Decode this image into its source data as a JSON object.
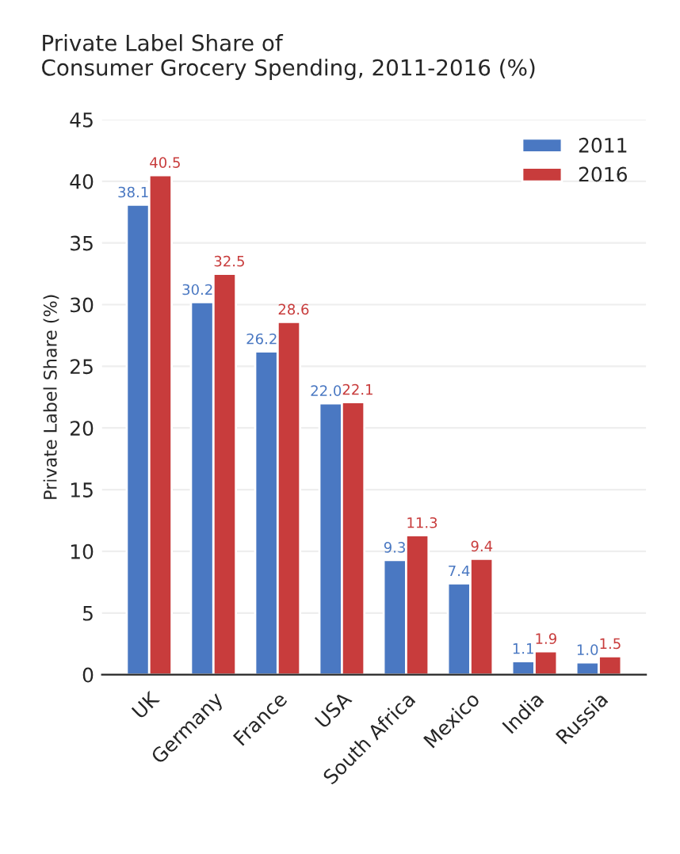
{
  "chart_data": {
    "type": "bar",
    "title": "Private Label Share of\nConsumer Grocery Spending, 2011-2016 (%)",
    "ylabel": "Private Label Share (%)",
    "categories": [
      "UK",
      "Germany",
      "France",
      "USA",
      "South Africa",
      "Mexico",
      "India",
      "Russia"
    ],
    "series": [
      {
        "name": "2011",
        "color": "#4a78c2",
        "values": [
          38.1,
          30.2,
          26.2,
          22.0,
          9.3,
          7.4,
          1.1,
          1.0
        ],
        "value_labels": [
          "38.1",
          "30.2",
          "26.2",
          "22.0",
          "9.3",
          "7.4",
          "1.1",
          "1.0"
        ]
      },
      {
        "name": "2016",
        "color": "#c83c3c",
        "values": [
          40.5,
          32.5,
          28.6,
          22.1,
          11.3,
          9.4,
          1.9,
          1.5
        ],
        "value_labels": [
          "40.5",
          "32.5",
          "28.6",
          "22.1",
          "11.3",
          "9.4",
          "1.9",
          "1.5"
        ]
      }
    ],
    "ylim": [
      0,
      45
    ],
    "yticks": [
      0,
      5,
      10,
      15,
      20,
      25,
      30,
      35,
      40,
      45
    ],
    "grid": "y",
    "legend": "top right"
  }
}
